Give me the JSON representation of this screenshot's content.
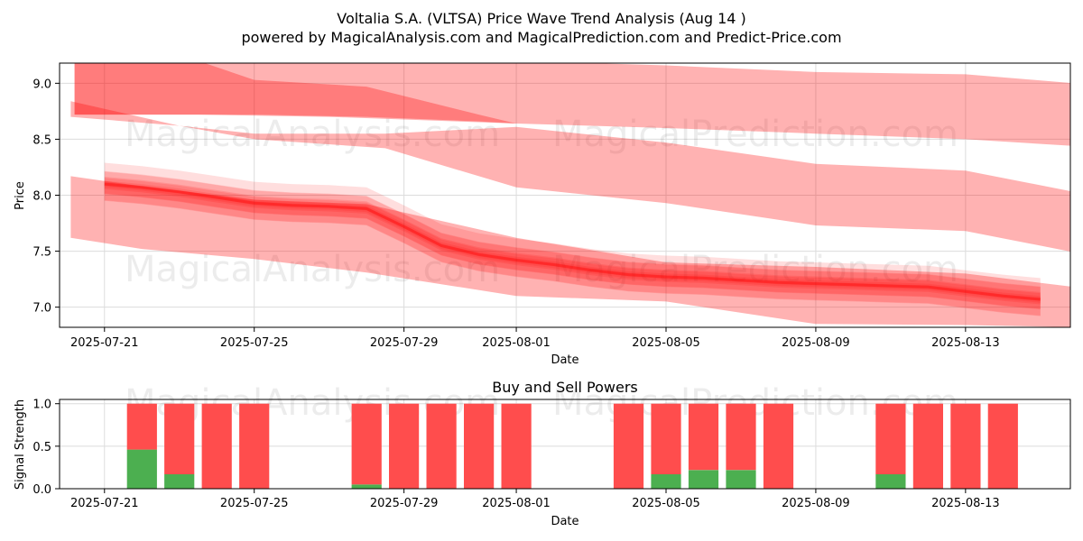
{
  "colors": {
    "band": "#ff0000",
    "buy": "#4caf50",
    "sell": "#ff4d4d",
    "grid": "#dcdcdc"
  },
  "watermark": {
    "left": "MagicalAnalysis.com",
    "right": "MagicalPrediction.com"
  },
  "chart_data": [
    {
      "type": "area",
      "title": "Voltalia S.A. (VLTSA) Price Wave Trend Analysis (Aug 14 )",
      "subtitle": "powered by MagicalAnalysis.com and MagicalPrediction.com and Predict-Price.com",
      "xlabel": "Date",
      "ylabel": "Price",
      "ylim": [
        6.82,
        9.18
      ],
      "xlim_days": [
        -1.2,
        25.8
      ],
      "x_start_date": "2025-07-21",
      "xticks": {
        "days": [
          0,
          4,
          8,
          11,
          15,
          19,
          23
        ],
        "labels": [
          "2025-07-21",
          "2025-07-25",
          "2025-07-29",
          "2025-08-01",
          "2025-08-05",
          "2025-08-09",
          "2025-08-13"
        ]
      },
      "yticks": {
        "values": [
          7.0,
          7.5,
          8.0,
          8.5,
          9.0
        ],
        "labels": [
          "7.0",
          "7.5",
          "8.0",
          "8.5",
          "9.0"
        ]
      },
      "grid": true,
      "price_days": [
        0,
        1,
        2,
        3,
        4,
        5,
        6,
        7,
        8,
        9,
        10,
        11,
        12,
        13,
        14,
        15,
        16,
        17,
        18,
        19,
        20,
        21,
        22,
        23,
        24,
        25
      ],
      "price_center": [
        8.1,
        8.07,
        8.03,
        7.98,
        7.93,
        7.91,
        7.9,
        7.88,
        7.72,
        7.55,
        7.47,
        7.42,
        7.38,
        7.33,
        7.29,
        7.27,
        7.26,
        7.24,
        7.22,
        7.21,
        7.2,
        7.19,
        7.18,
        7.14,
        7.1,
        7.07
      ],
      "series": [
        {
          "name": "upper-dark-wedge",
          "days": [
            -0.8,
            -0.6,
            2.5,
            4.0,
            7.0,
            10.0,
            11.0
          ],
          "upper": [
            9.2,
            9.2,
            9.2,
            9.03,
            8.97,
            8.72,
            8.64
          ],
          "lower": [
            8.72,
            8.72,
            8.72,
            8.72,
            8.7,
            8.66,
            8.64
          ]
        },
        {
          "name": "top-channel",
          "days": [
            -0.8,
            2.5,
            6.0,
            11.0,
            15.0,
            19.0,
            23.0,
            25.9
          ],
          "upper": [
            9.2,
            9.2,
            9.2,
            9.2,
            9.16,
            9.1,
            9.08,
            9.0
          ],
          "lower": [
            8.72,
            8.72,
            8.7,
            8.64,
            8.6,
            8.55,
            8.5,
            8.44
          ]
        },
        {
          "name": "middle-channel",
          "days": [
            -0.9,
            2.0,
            4.0,
            7.5,
            11.0,
            15.0,
            19.0,
            23.0,
            25.9
          ],
          "upper": [
            8.84,
            8.62,
            8.55,
            8.55,
            8.61,
            8.47,
            8.28,
            8.22,
            8.03
          ],
          "lower": [
            8.7,
            8.62,
            8.5,
            8.42,
            8.07,
            7.93,
            7.73,
            7.68,
            7.49
          ]
        },
        {
          "name": "bottom-channel",
          "days": [
            -0.9,
            1.0,
            4.0,
            7.0,
            11.0,
            15.0,
            19.0,
            23.0,
            25.9
          ],
          "upper": [
            8.17,
            8.08,
            7.96,
            7.92,
            7.62,
            7.4,
            7.36,
            7.3,
            7.18
          ],
          "lower": [
            7.62,
            7.52,
            7.43,
            7.31,
            7.1,
            7.05,
            6.85,
            6.84,
            6.82
          ]
        }
      ]
    },
    {
      "type": "bar",
      "title": "Buy and Sell Powers",
      "xlabel": "Date",
      "ylabel": "Signal Strength",
      "ylim": [
        0,
        1.05
      ],
      "xlim_days": [
        -1.2,
        25.8
      ],
      "xticks": {
        "days": [
          0,
          4,
          8,
          11,
          15,
          19,
          23
        ],
        "labels": [
          "2025-07-21",
          "2025-07-25",
          "2025-07-29",
          "2025-08-01",
          "2025-08-05",
          "2025-08-09",
          "2025-08-13"
        ]
      },
      "yticks": {
        "values": [
          0.0,
          0.5,
          1.0
        ],
        "labels": [
          "0.0",
          "0.5",
          "1.0"
        ]
      },
      "days": [
        1,
        2,
        3,
        4,
        7,
        8,
        9,
        10,
        11,
        14,
        15,
        16,
        17,
        18,
        21,
        22,
        23,
        24
      ],
      "buy": [
        0.46,
        0.17,
        0,
        0,
        0.05,
        0,
        0,
        0,
        0,
        0,
        0.17,
        0.22,
        0.22,
        0,
        0.17,
        0,
        0,
        0
      ],
      "sell": [
        0.54,
        0.83,
        1,
        1,
        0.95,
        1,
        1,
        1,
        1,
        1,
        0.83,
        0.78,
        0.78,
        1,
        0.83,
        1,
        1,
        1
      ]
    }
  ]
}
